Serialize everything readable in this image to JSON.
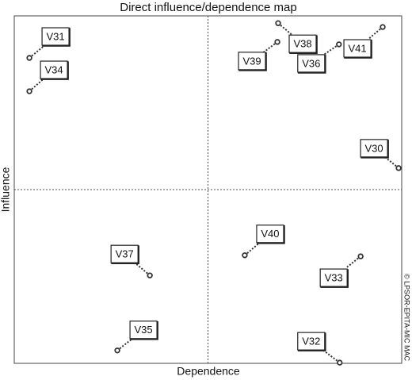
{
  "chart_data": {
    "type": "scatter",
    "title": "Direct influence/dependence map",
    "x_label": "Dependence",
    "y_label": "Influence",
    "source": "© LPSOR-EPITA-MIC MAC",
    "xlim": [
      0,
      100
    ],
    "ylim": [
      0,
      100
    ],
    "color": "#333333",
    "labels": [
      "V31",
      "V34",
      "V38",
      "V39",
      "V36",
      "V41",
      "V30",
      "V40",
      "V37",
      "V33",
      "V35",
      "V32"
    ],
    "x": [
      3.9,
      3.9,
      68.1,
      67.9,
      83.8,
      95.1,
      99.2,
      59.5,
      35.0,
      89.4,
      26.6,
      84.0
    ],
    "y": [
      87.9,
      78.3,
      97.9,
      92.5,
      91.8,
      96.8,
      56.2,
      31.1,
      25.3,
      30.8,
      3.7,
      0.2
    ]
  }
}
